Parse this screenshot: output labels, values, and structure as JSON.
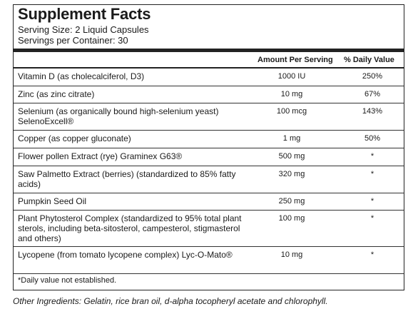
{
  "panel": {
    "title": "Supplement Facts",
    "serving_size": "Serving Size: 2 Liquid Capsules",
    "servings_per_container": "Servings per Container: 30",
    "col_amount": "Amount Per Serving",
    "col_dv": "% Daily Value",
    "rows": [
      {
        "name": "Vitamin D (as cholecalciferol, D3)",
        "amount": "1000 IU",
        "dv": "250%"
      },
      {
        "name": "Zinc (as zinc citrate)",
        "amount": "10 mg",
        "dv": "67%"
      },
      {
        "name": "Selenium (as organically bound high-selenium yeast) SelenoExcell®",
        "amount": "100 mcg",
        "dv": "143%"
      },
      {
        "name": "Copper (as copper gluconate)",
        "amount": "1 mg",
        "dv": "50%"
      },
      {
        "name": "Flower pollen Extract (rye) Graminex G63®",
        "amount": "500 mg",
        "dv": "*"
      },
      {
        "name": "Saw Palmetto Extract (berries) (standardized to 85% fatty acids)",
        "amount": "320 mg",
        "dv": "*"
      },
      {
        "name": "Pumpkin Seed Oil",
        "amount": "250 mg",
        "dv": "*"
      },
      {
        "name": "Plant Phytosterol Complex (standardized to 95% total plant sterols, including beta-sitosterol, campesterol, stigmasterol and others)",
        "amount": "100 mg",
        "dv": "*"
      },
      {
        "name": "Lycopene (from tomato lycopene complex) Lyc-O-Mato®",
        "amount": "10 mg",
        "dv": "*"
      }
    ],
    "footnote": "*Daily value not established."
  },
  "other_ingredients": "Other Ingredients: Gelatin, rice bran oil, d-alpha tocopheryl acetate and chlorophyll."
}
